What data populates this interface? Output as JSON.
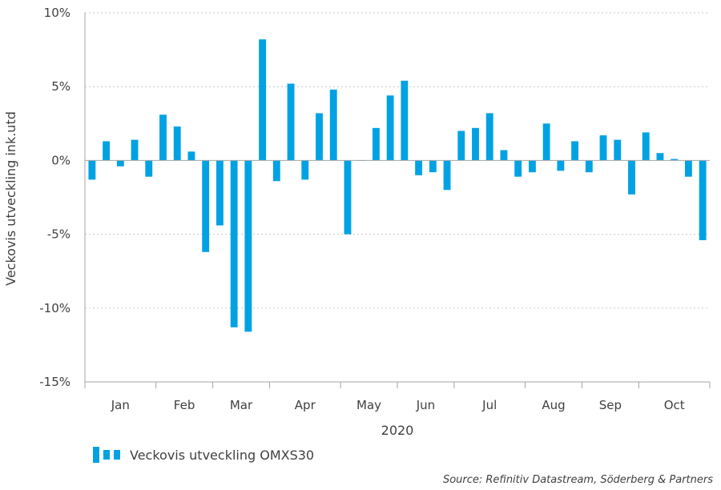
{
  "chart_data": {
    "type": "bar",
    "ylabel": "Veckovis utveckling ink.utd",
    "xlabel": "2020",
    "ylim": [
      -15,
      10
    ],
    "yticks": [
      10,
      5,
      0,
      -5,
      -10,
      -15
    ],
    "ytick_labels": [
      "10%",
      "5%",
      "0%",
      "-5%",
      "-10%",
      "-15%"
    ],
    "months": [
      "Jan",
      "Feb",
      "Mar",
      "Apr",
      "May",
      "Jun",
      "Jul",
      "Aug",
      "Sep",
      "Oct"
    ],
    "weeks_per_month": [
      5,
      4,
      4,
      5,
      4,
      4,
      5,
      4,
      4,
      5
    ],
    "grid": "horizontal-dotted",
    "series": [
      {
        "name": "Veckovis utveckling OMXS30",
        "color": "#00a2e3",
        "values": [
          -1.3,
          1.3,
          -0.4,
          1.4,
          -1.1,
          3.1,
          2.3,
          0.6,
          -6.2,
          -4.4,
          -11.3,
          -11.6,
          8.2,
          -1.4,
          5.2,
          -1.3,
          3.2,
          4.8,
          -5.0,
          0.0,
          2.2,
          4.4,
          5.4,
          -1.0,
          -0.8,
          -2.0,
          2.0,
          2.2,
          3.2,
          0.7,
          -1.1,
          -0.8,
          2.5,
          -0.7,
          1.3,
          -0.8,
          1.7,
          1.4,
          -2.3,
          1.9,
          0.5,
          0.1,
          -1.1,
          -5.4
        ]
      }
    ],
    "legend": "bottom-left"
  },
  "source": "Source: Refinitiv Datastream, Söderberg & Partners"
}
